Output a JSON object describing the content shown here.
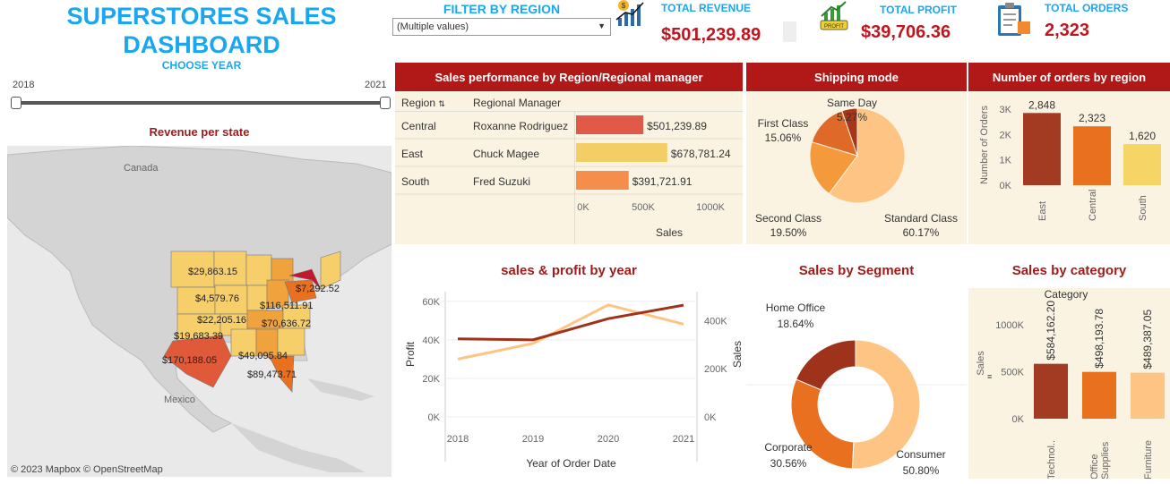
{
  "header": {
    "title_line1": "SUPERSTORES SALES",
    "title_line2": "DASHBOARD",
    "choose_year": "CHOOSE YEAR",
    "year_start": "2018",
    "year_end": "2021"
  },
  "filter": {
    "title": "FILTER BY REGION",
    "value": "(Multiple values)"
  },
  "kpis": {
    "revenue_label": "TOTAL REVENUE",
    "revenue_value": "$501,239.89",
    "profit_label": "TOTAL PROFIT",
    "profit_value": "$39,706.36",
    "orders_label": "TOTAL ORDERS",
    "orders_value": "2,323"
  },
  "map": {
    "title": "Revenue per state",
    "attribution": "© 2023 Mapbox  © OpenStreetMap",
    "country_labels": [
      "Canada",
      "Mexico"
    ],
    "state_labels": [
      "$29,863.15",
      "$4,579.76",
      "$22,205.16",
      "$116,511.91",
      "$70,636.72",
      "$7,292.52",
      "$19,683.39",
      "$170,188.05",
      "$49,095.84",
      "$89,473.71"
    ]
  },
  "region_table": {
    "title": "Sales performance by Region/Regional manager",
    "col_region": "Region",
    "col_manager": "Regional Manager",
    "axis_label": "Sales"
  },
  "shipping": {
    "title": "Shipping mode"
  },
  "orders_region": {
    "title": "Number of orders by region",
    "ylabel": "Number of Orders"
  },
  "sales_profit": {
    "title": "sales & profit by year",
    "xlabel": "Year of Order Date",
    "ylabel_left": "Profit",
    "ylabel_right": "Sales"
  },
  "segment": {
    "title": "Sales  by Segment"
  },
  "category": {
    "title": "Sales by category",
    "legend_title": "Category",
    "ylabel": "Sales"
  },
  "colors": {
    "accent_blue": "#1aa7f0",
    "kpi_red": "#c4141d",
    "header_red": "#b11818",
    "panel_bg": "#fbf3e2"
  },
  "chart_data": [
    {
      "type": "bar",
      "title": "Sales performance by Region/Regional manager",
      "categories": [
        "Central",
        "East",
        "South"
      ],
      "managers": [
        "Roxanne Rodriguez",
        "Chuck Magee",
        "Fred Suzuki"
      ],
      "values": [
        501239.89,
        678781.24,
        391721.91
      ],
      "labels": [
        "$501,239.89",
        "$678,781.24",
        "$391,721.91"
      ],
      "colors": [
        "#e05a47",
        "#f3cd66",
        "#f58e4a"
      ],
      "ticks": [
        "0K",
        "500K",
        "1000K"
      ],
      "xlim": [
        0,
        1000000
      ],
      "xlabel": "Sales"
    },
    {
      "type": "pie",
      "title": "Shipping mode",
      "slices": [
        {
          "name": "Standard Class",
          "value": 60.17,
          "label": "60.17%",
          "color": "#fdc484"
        },
        {
          "name": "Second Class",
          "value": 19.5,
          "label": "19.50%",
          "color": "#f49a3c"
        },
        {
          "name": "First Class",
          "value": 15.06,
          "label": "15.06%",
          "color": "#df6a28"
        },
        {
          "name": "Same Day",
          "value": 5.27,
          "label": "5.27%",
          "color": "#a8351a"
        }
      ]
    },
    {
      "type": "bar",
      "title": "Number of orders by region",
      "categories": [
        "East",
        "Central",
        "South"
      ],
      "values": [
        2848,
        2323,
        1620
      ],
      "labels": [
        "2,848",
        "2,323",
        "1,620"
      ],
      "colors": [
        "#a33b22",
        "#e8701f",
        "#f6d465"
      ],
      "ylim": [
        0,
        3000
      ],
      "ticks": [
        "0K",
        "1K",
        "2K",
        "3K"
      ],
      "ylabel": "Number of Orders"
    },
    {
      "type": "line",
      "title": "sales & profit by year",
      "x": [
        "2018",
        "2019",
        "2020",
        "2021"
      ],
      "series": [
        {
          "name": "Profit",
          "values": [
            40500,
            40000,
            51000,
            58000
          ],
          "color": "#9e321b",
          "axis": "left"
        },
        {
          "name": "Sales",
          "values": [
            240000,
            305000,
            465000,
            385000
          ],
          "color": "#fdc484",
          "axis": "right"
        }
      ],
      "ylim_left": [
        0,
        65000
      ],
      "ylim_right": [
        0,
        520000
      ],
      "ticks_left": [
        "0K",
        "20K",
        "40K",
        "60K"
      ],
      "ticks_right": [
        "0K",
        "200K",
        "400K"
      ],
      "xlabel": "Year of Order Date",
      "ylabel_left": "Profit",
      "ylabel_right": "Sales"
    },
    {
      "type": "pie",
      "title": "Sales  by Segment",
      "donut": true,
      "slices": [
        {
          "name": "Consumer",
          "value": 50.8,
          "label": "50.80%",
          "color": "#fdc484"
        },
        {
          "name": "Corporate",
          "value": 30.56,
          "label": "30.56%",
          "color": "#e8701f"
        },
        {
          "name": "Home Office",
          "value": 18.64,
          "label": "18.64%",
          "color": "#9e321b"
        }
      ]
    },
    {
      "type": "bar",
      "title": "Sales by category",
      "categories": [
        "Technol..",
        "Office Supplies",
        "Furniture"
      ],
      "values": [
        584162.2,
        498193.78,
        489387.05
      ],
      "labels": [
        "$584,162.20",
        "$498,193.78",
        "$489,387.05"
      ],
      "colors": [
        "#a33b22",
        "#e8701f",
        "#fdc484"
      ],
      "ylim": [
        0,
        1200000
      ],
      "ticks": [
        "0K",
        "500K",
        "1000K"
      ],
      "ylabel": "Sales",
      "legend_title": "Category"
    }
  ]
}
